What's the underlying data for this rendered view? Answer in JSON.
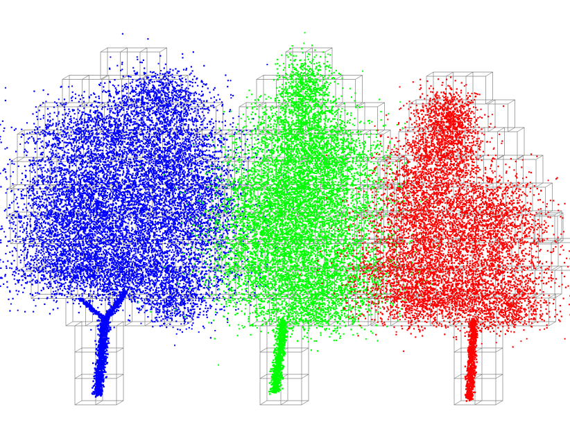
{
  "scene": {
    "description_hidden": "",
    "colors": {
      "background": "#ffffff",
      "voxel_edge": "#555555",
      "tree_1": "#0000ff",
      "tree_2": "#00ff00",
      "tree_3": "#ff0000"
    },
    "trees": [
      {
        "name": "tree-blue",
        "color": "#0000ff"
      },
      {
        "name": "tree-green",
        "color": "#00ff00"
      },
      {
        "name": "tree-red",
        "color": "#ff0000"
      }
    ]
  }
}
